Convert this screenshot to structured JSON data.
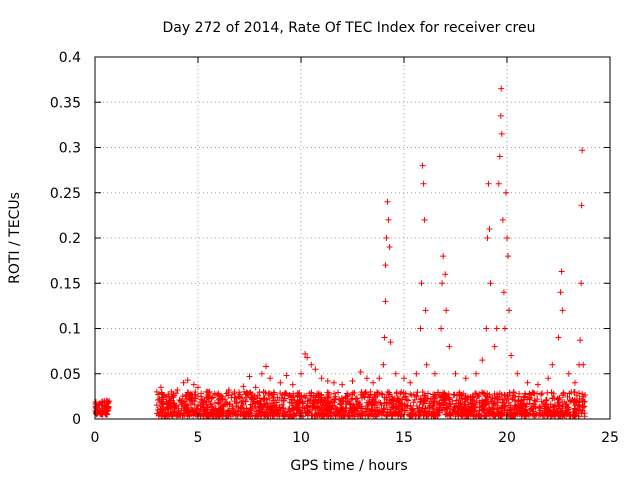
{
  "chart_data": {
    "type": "scatter",
    "title": "Day 272 of 2014, Rate Of TEC Index for receiver creu",
    "xlabel": "GPS time / hours",
    "ylabel": "ROTI / TECUs",
    "xlim": [
      0,
      25
    ],
    "ylim": [
      0,
      0.4
    ],
    "xticks": [
      0,
      5,
      10,
      15,
      20,
      25
    ],
    "xtick_labels": [
      "0",
      "5",
      "10",
      "15",
      "20",
      "25"
    ],
    "yticks": [
      0,
      0.05,
      0.1,
      0.15,
      0.2,
      0.25,
      0.3,
      0.35,
      0.4
    ],
    "ytick_labels": [
      "0",
      "0.05",
      "0.1",
      "0.15",
      "0.2",
      "0.25",
      "0.3",
      "0.35",
      "0.4"
    ],
    "grid": true,
    "marker": "plus",
    "color": "#ff0000",
    "baseline_segments": [
      {
        "x_range": [
          0.0,
          0.7
        ],
        "y_range": [
          0.005,
          0.02
        ]
      },
      {
        "x_range": [
          3.0,
          23.8
        ],
        "y_range": [
          0.003,
          0.03
        ]
      }
    ],
    "series": [
      {
        "name": "ROTI",
        "points": [
          [
            0.05,
            0.012
          ],
          [
            0.15,
            0.016
          ],
          [
            0.25,
            0.009
          ],
          [
            0.35,
            0.018
          ],
          [
            0.45,
            0.013
          ],
          [
            0.55,
            0.02
          ],
          [
            0.62,
            0.011
          ],
          [
            3.0,
            0.03
          ],
          [
            3.2,
            0.035
          ],
          [
            3.6,
            0.025
          ],
          [
            4.0,
            0.032
          ],
          [
            4.3,
            0.04
          ],
          [
            4.5,
            0.043
          ],
          [
            4.8,
            0.038
          ],
          [
            5.0,
            0.035
          ],
          [
            5.4,
            0.03
          ],
          [
            6.0,
            0.028
          ],
          [
            6.5,
            0.032
          ],
          [
            7.2,
            0.036
          ],
          [
            7.5,
            0.047
          ],
          [
            7.8,
            0.035
          ],
          [
            8.1,
            0.05
          ],
          [
            8.3,
            0.058
          ],
          [
            8.5,
            0.045
          ],
          [
            9.0,
            0.04
          ],
          [
            9.3,
            0.048
          ],
          [
            9.6,
            0.038
          ],
          [
            10.0,
            0.05
          ],
          [
            10.2,
            0.072
          ],
          [
            10.3,
            0.068
          ],
          [
            10.5,
            0.06
          ],
          [
            10.7,
            0.055
          ],
          [
            11.0,
            0.045
          ],
          [
            11.3,
            0.042
          ],
          [
            11.6,
            0.04
          ],
          [
            12.0,
            0.038
          ],
          [
            12.5,
            0.042
          ],
          [
            12.9,
            0.052
          ],
          [
            13.2,
            0.045
          ],
          [
            13.5,
            0.04
          ],
          [
            13.8,
            0.045
          ],
          [
            14.0,
            0.06
          ],
          [
            14.05,
            0.09
          ],
          [
            14.1,
            0.13
          ],
          [
            14.1,
            0.17
          ],
          [
            14.15,
            0.2
          ],
          [
            14.2,
            0.24
          ],
          [
            14.25,
            0.22
          ],
          [
            14.3,
            0.19
          ],
          [
            14.35,
            0.085
          ],
          [
            14.6,
            0.05
          ],
          [
            15.0,
            0.045
          ],
          [
            15.3,
            0.04
          ],
          [
            15.6,
            0.05
          ],
          [
            15.8,
            0.1
          ],
          [
            15.85,
            0.15
          ],
          [
            15.9,
            0.28
          ],
          [
            15.95,
            0.26
          ],
          [
            16.0,
            0.22
          ],
          [
            16.05,
            0.12
          ],
          [
            16.1,
            0.06
          ],
          [
            16.5,
            0.05
          ],
          [
            16.8,
            0.1
          ],
          [
            16.85,
            0.15
          ],
          [
            16.9,
            0.18
          ],
          [
            17.0,
            0.16
          ],
          [
            17.05,
            0.12
          ],
          [
            17.2,
            0.08
          ],
          [
            17.5,
            0.05
          ],
          [
            18.0,
            0.045
          ],
          [
            18.5,
            0.05
          ],
          [
            18.8,
            0.065
          ],
          [
            19.0,
            0.1
          ],
          [
            19.05,
            0.2
          ],
          [
            19.1,
            0.26
          ],
          [
            19.15,
            0.21
          ],
          [
            19.2,
            0.15
          ],
          [
            19.4,
            0.08
          ],
          [
            19.5,
            0.1
          ],
          [
            19.6,
            0.26
          ],
          [
            19.65,
            0.29
          ],
          [
            19.7,
            0.335
          ],
          [
            19.72,
            0.365
          ],
          [
            19.75,
            0.315
          ],
          [
            19.8,
            0.22
          ],
          [
            19.85,
            0.14
          ],
          [
            19.9,
            0.1
          ],
          [
            19.95,
            0.25
          ],
          [
            20.0,
            0.2
          ],
          [
            20.05,
            0.18
          ],
          [
            20.1,
            0.12
          ],
          [
            20.2,
            0.07
          ],
          [
            20.5,
            0.05
          ],
          [
            21.0,
            0.04
          ],
          [
            21.5,
            0.038
          ],
          [
            22.0,
            0.045
          ],
          [
            22.2,
            0.06
          ],
          [
            22.5,
            0.09
          ],
          [
            22.6,
            0.14
          ],
          [
            22.65,
            0.163
          ],
          [
            22.7,
            0.12
          ],
          [
            23.0,
            0.05
          ],
          [
            23.3,
            0.04
          ],
          [
            23.5,
            0.06
          ],
          [
            23.55,
            0.087
          ],
          [
            23.6,
            0.15
          ],
          [
            23.62,
            0.236
          ],
          [
            23.65,
            0.297
          ],
          [
            23.7,
            0.06
          ]
        ]
      }
    ]
  }
}
